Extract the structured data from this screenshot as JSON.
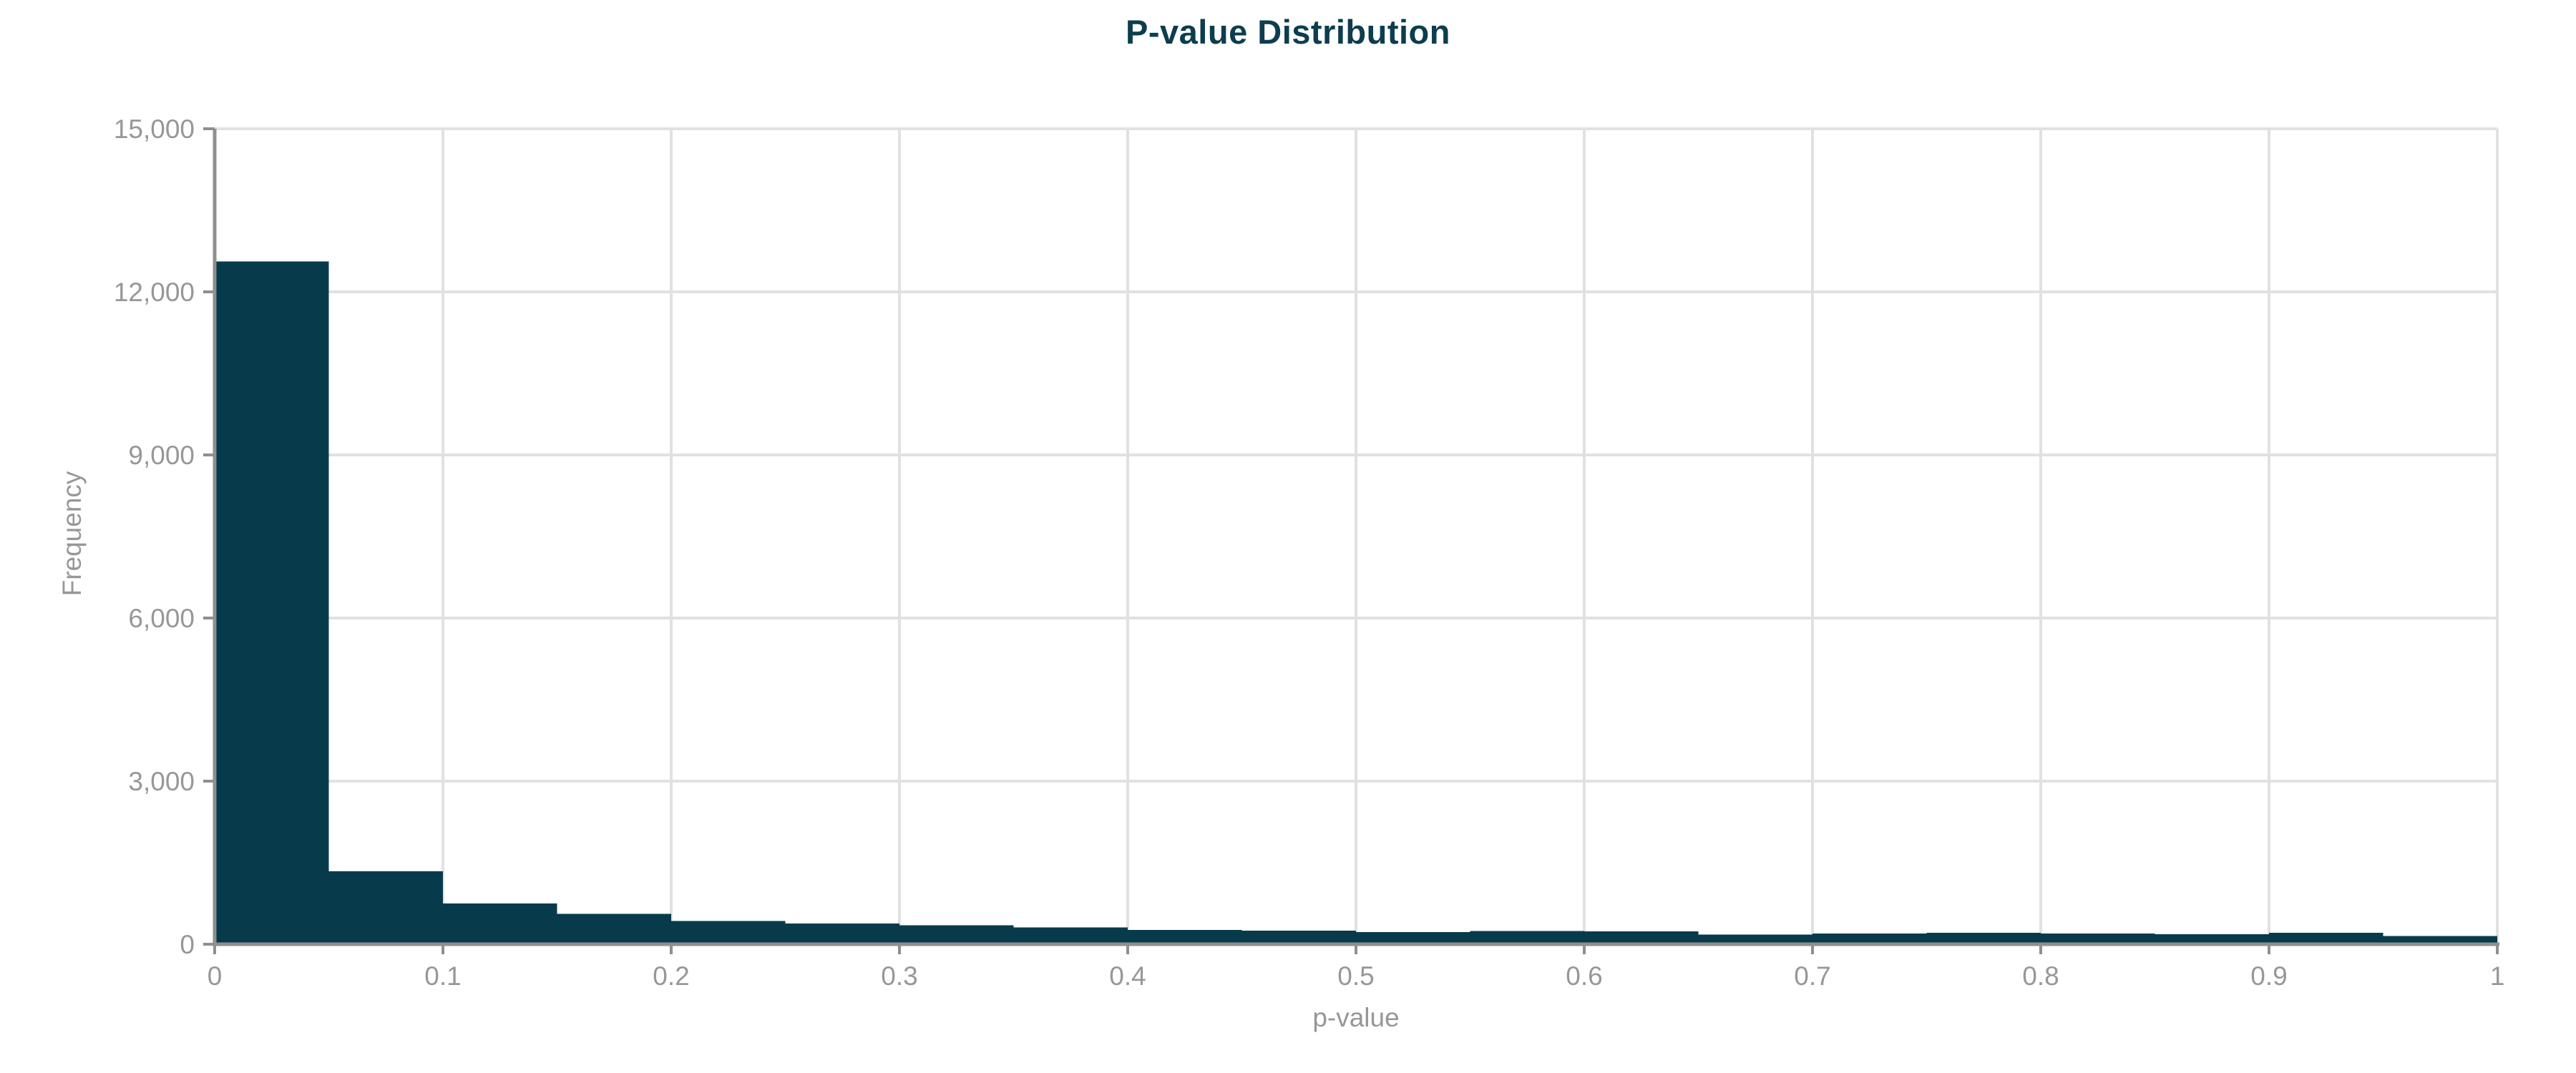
{
  "title": "P-value Distribution",
  "chart_data": {
    "type": "bar",
    "subtype": "histogram",
    "title": "P-value Distribution",
    "xlabel": "p-value",
    "ylabel": "Frequency",
    "bin_start": 0,
    "bin_width": 0.05,
    "values": [
      12560,
      1340,
      750,
      560,
      430,
      380,
      350,
      310,
      260,
      250,
      225,
      245,
      235,
      175,
      195,
      210,
      200,
      185,
      210,
      150
    ],
    "xlim": [
      0,
      1
    ],
    "ylim": [
      0,
      15000
    ],
    "xticks": [
      0,
      0.1,
      0.2,
      0.3,
      0.4,
      0.5,
      0.6,
      0.7,
      0.8,
      0.9,
      1
    ],
    "xtick_labels": [
      "0",
      "0.1",
      "0.2",
      "0.3",
      "0.4",
      "0.5",
      "0.6",
      "0.7",
      "0.8",
      "0.9",
      "1"
    ],
    "yticks": [
      0,
      3000,
      6000,
      9000,
      12000,
      15000
    ],
    "ytick_labels": [
      "0",
      "3,000",
      "6,000",
      "9,000",
      "12,000",
      "15,000"
    ],
    "grid": "both",
    "legend": "none",
    "bar_color": "#073b4c",
    "title_color": "#0d3d4f",
    "axis_color": "#8f8f8f",
    "label_color": "#979797",
    "grid_color": "#e1e1e1",
    "background": "#ffffff"
  }
}
